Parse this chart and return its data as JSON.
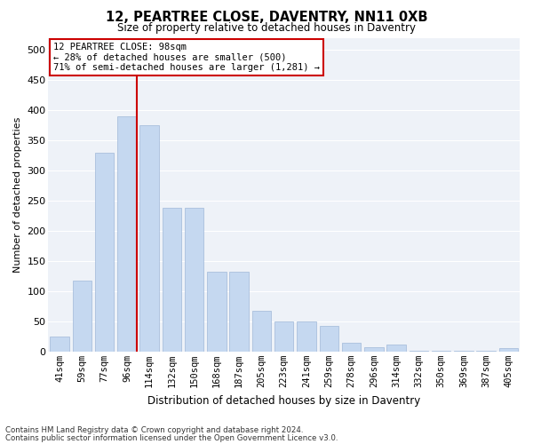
{
  "title": "12, PEARTREE CLOSE, DAVENTRY, NN11 0XB",
  "subtitle": "Size of property relative to detached houses in Daventry",
  "xlabel": "Distribution of detached houses by size in Daventry",
  "ylabel": "Number of detached properties",
  "categories": [
    "41sqm",
    "59sqm",
    "77sqm",
    "96sqm",
    "114sqm",
    "132sqm",
    "150sqm",
    "168sqm",
    "187sqm",
    "205sqm",
    "223sqm",
    "241sqm",
    "259sqm",
    "278sqm",
    "296sqm",
    "314sqm",
    "332sqm",
    "350sqm",
    "369sqm",
    "387sqm",
    "405sqm"
  ],
  "values": [
    25,
    117,
    330,
    390,
    375,
    238,
    238,
    133,
    133,
    68,
    50,
    50,
    43,
    15,
    7,
    12,
    2,
    2,
    2,
    2,
    5
  ],
  "bar_color": "#c5d8f0",
  "bar_edge_color": "#a0b8d8",
  "highlight_line_index": 3,
  "highlight_line_color": "#cc0000",
  "annotation_text": "12 PEARTREE CLOSE: 98sqm\n← 28% of detached houses are smaller (500)\n71% of semi-detached houses are larger (1,281) →",
  "annotation_box_facecolor": "#ffffff",
  "annotation_box_edgecolor": "#cc0000",
  "ylim": [
    0,
    520
  ],
  "yticks": [
    0,
    50,
    100,
    150,
    200,
    250,
    300,
    350,
    400,
    450,
    500
  ],
  "background_color": "#eef2f8",
  "footer_line1": "Contains HM Land Registry data © Crown copyright and database right 2024.",
  "footer_line2": "Contains public sector information licensed under the Open Government Licence v3.0."
}
